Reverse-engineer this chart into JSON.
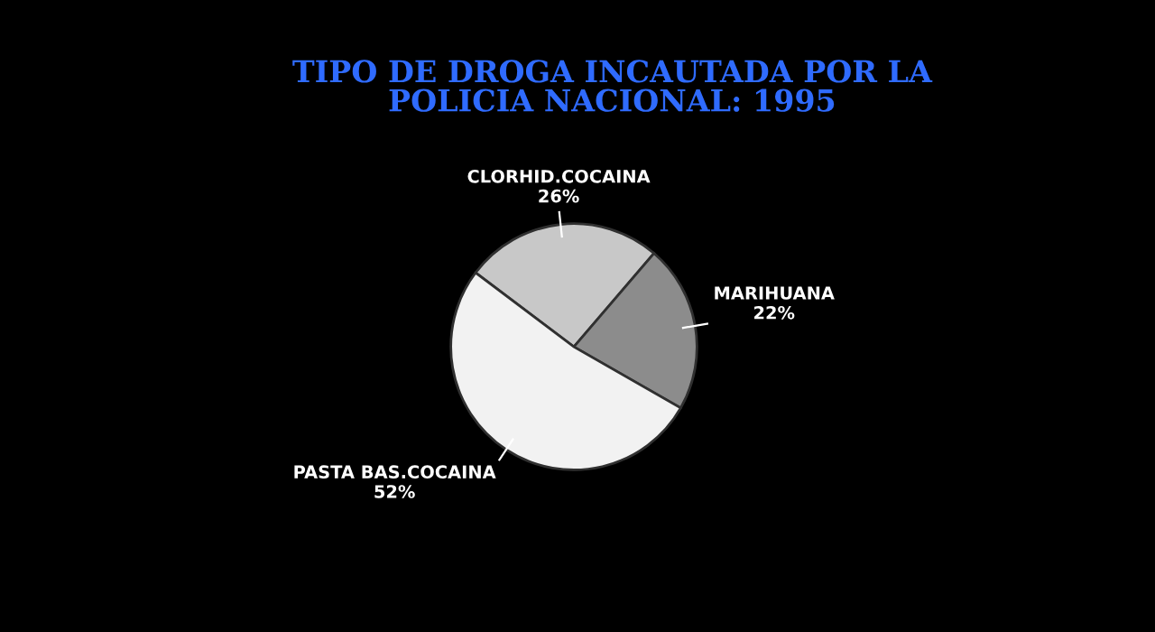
{
  "chart_data": {
    "type": "pie",
    "title": "TIPO DE DROGA INCAUTADA POR LA\nPOLICIA NACIONAL: 1995",
    "categories": [
      "CLORHID.COCAINA",
      "MARIHUANA",
      "PASTA BAS.COCAINA"
    ],
    "values": [
      26,
      22,
      52
    ],
    "value_labels": [
      "26%",
      "22%",
      "52%"
    ],
    "colors": [
      "#c8c8c8",
      "#8c8c8c",
      "#f2f2f2"
    ]
  }
}
